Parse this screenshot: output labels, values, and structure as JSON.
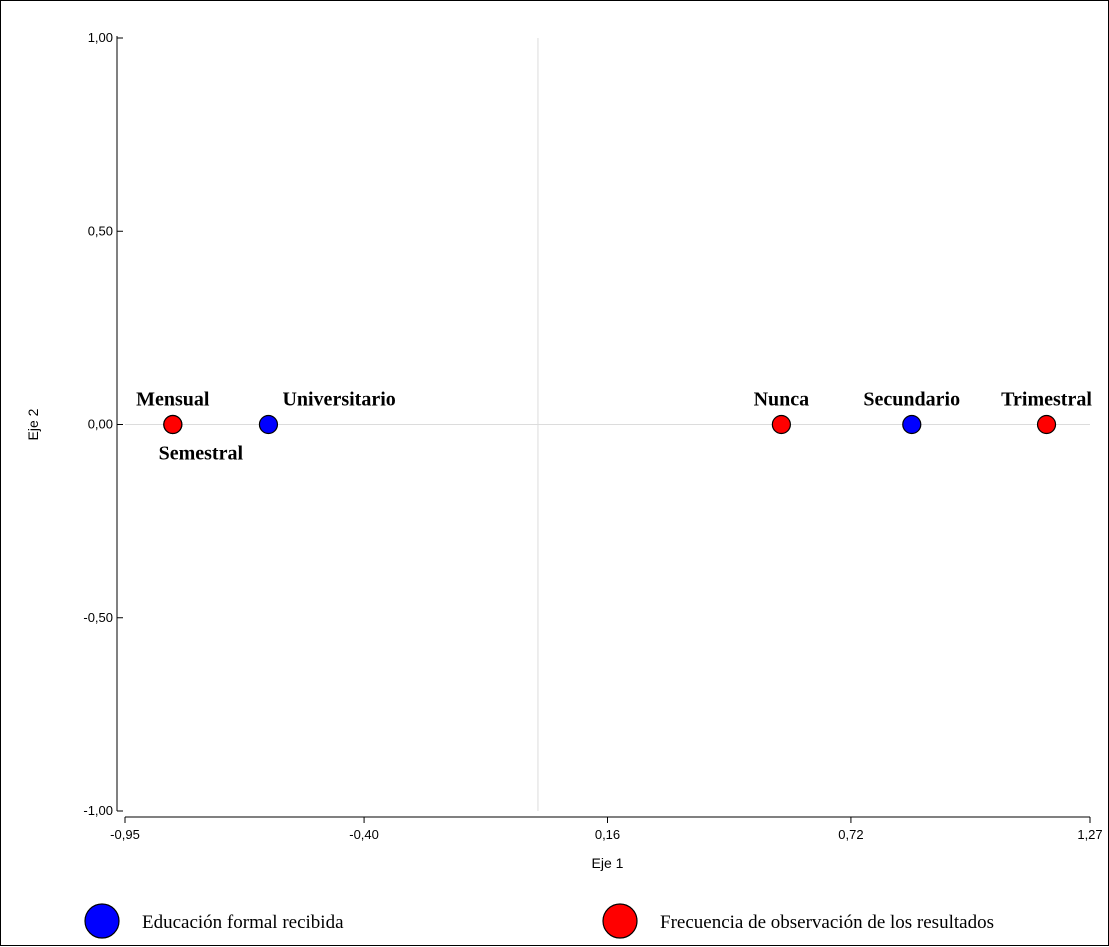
{
  "chart_data": {
    "type": "scatter",
    "xlabel": "Eje 1",
    "ylabel": "Eje 2",
    "xlim": [
      -0.95,
      1.27
    ],
    "ylim": [
      -1.0,
      1.0
    ],
    "x_ticks": [
      "-0,95",
      "-0,40",
      "0,16",
      "0,72",
      "1,27"
    ],
    "x_tick_values": [
      -0.95,
      -0.4,
      0.16,
      0.72,
      1.27
    ],
    "y_ticks": [
      "1,00",
      "0,50",
      "0,00",
      "-0,50",
      "-1,00"
    ],
    "y_tick_values": [
      1.0,
      0.5,
      0.0,
      -0.5,
      -1.0
    ],
    "grid": "reference lines at x=0 and y=0",
    "legend_position": "bottom",
    "series": [
      {
        "name": "Educación formal recibida",
        "color": "#0000ff",
        "points": [
          {
            "label": "Universitario",
            "x": -0.62,
            "y": 0.0,
            "label_pos": "above-right"
          },
          {
            "label": "Secundario",
            "x": 0.86,
            "y": 0.0,
            "label_pos": "above"
          }
        ]
      },
      {
        "name": "Frecuencia de observación de los resultados",
        "color": "#ff0000",
        "points": [
          {
            "label": "Mensual",
            "x": -0.84,
            "y": 0.0,
            "label_pos": "above"
          },
          {
            "label": "Semestral",
            "x": -0.84,
            "y": 0.0,
            "label_pos": "below"
          },
          {
            "label": "Nunca",
            "x": 0.56,
            "y": 0.0,
            "label_pos": "above"
          },
          {
            "label": "Trimestral",
            "x": 1.17,
            "y": 0.0,
            "label_pos": "above"
          }
        ]
      }
    ]
  }
}
